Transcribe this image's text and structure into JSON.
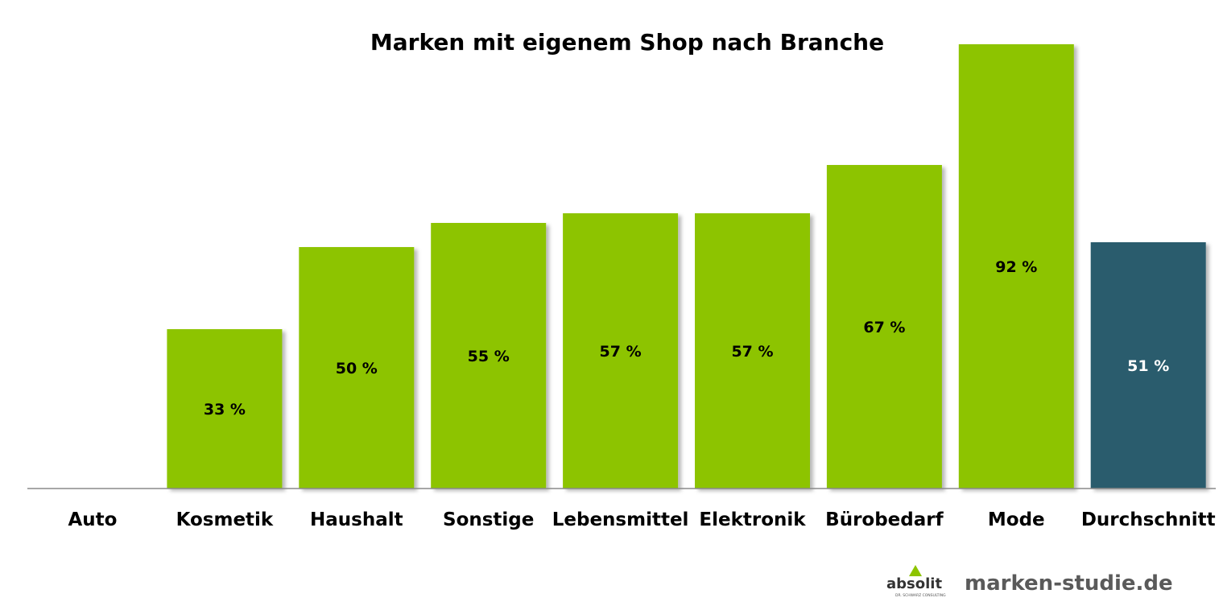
{
  "chart_data": {
    "type": "bar",
    "title": "Marken mit eigenem Shop nach Branche",
    "categories": [
      "Auto",
      "Kosmetik",
      "Haushalt",
      "Sonstige",
      "Lebensmittel",
      "Elektronik",
      "Bürobedarf",
      "Mode",
      "Durchschnitt"
    ],
    "values": [
      0,
      33,
      50,
      55,
      57,
      57,
      67,
      92,
      51
    ],
    "labels": [
      "",
      "33 %",
      "50 %",
      "55 %",
      "57 %",
      "57 %",
      "67 %",
      "92 %",
      "51 %"
    ],
    "highlight_category": "Durchschnitt",
    "ylim": [
      0,
      92
    ],
    "grid": false,
    "legend": "none",
    "colors": {
      "bar": "#8DC400",
      "highlight": "#2A5B6D",
      "label_default": "#000000",
      "label_highlight": "#FFFFFF",
      "axis": "#888888"
    }
  },
  "footer": {
    "logo_text": "absolit",
    "logo_subtext": "DR. SCHWARZ CONSULTING",
    "site": "marken-studie.de"
  }
}
